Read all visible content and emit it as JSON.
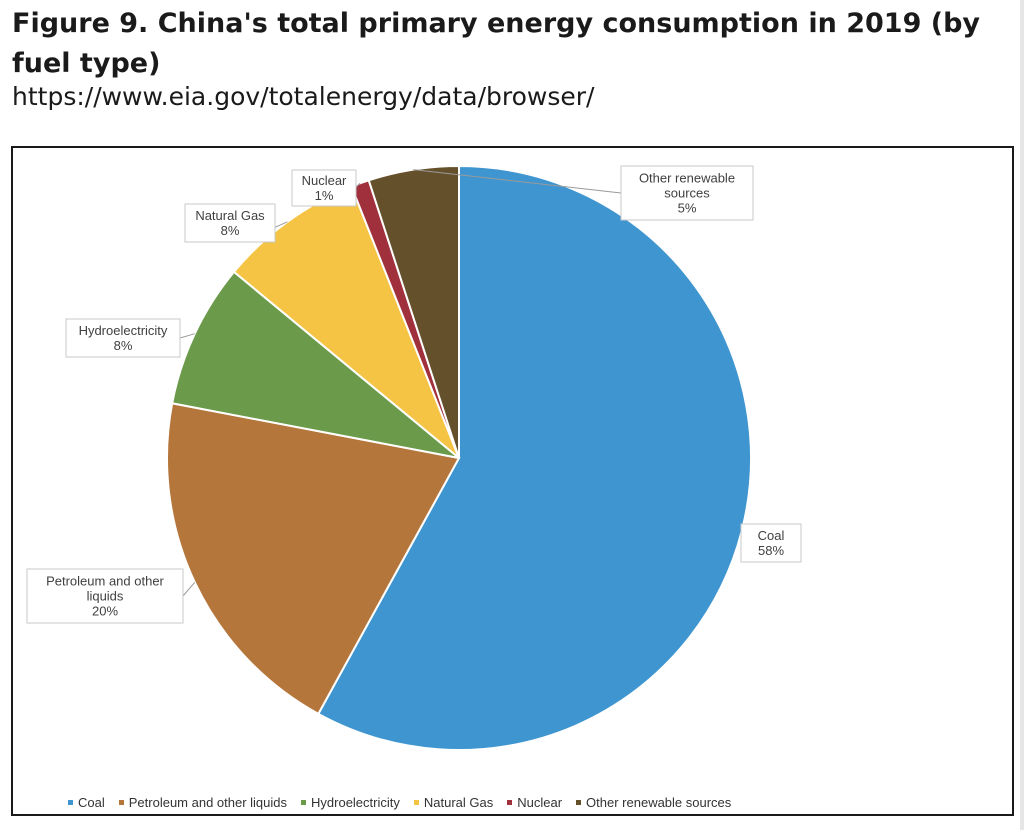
{
  "figure": {
    "title": "Figure 9. China's total primary energy consumption in 2019 (by fuel type)",
    "url": "https://www.eia.gov/totalenergy/data/browser/"
  },
  "chart_data": {
    "type": "pie",
    "title": "",
    "unit": "%",
    "start_angle_deg": 0,
    "direction": "clockwise",
    "categories": [
      "Coal",
      "Petroleum and other liquids",
      "Hydroelectricity",
      "Natural Gas",
      "Nuclear",
      "Other renewable sources"
    ],
    "values": [
      58,
      20,
      8,
      8,
      1,
      5
    ],
    "colors": [
      "#3f95cf",
      "#b5763b",
      "#6a9a4a",
      "#f5c445",
      "#a0303c",
      "#64502a"
    ],
    "labels": [
      {
        "lines": [
          "Coal",
          "58%"
        ]
      },
      {
        "lines": [
          "Petroleum and other",
          "liquids",
          "20%"
        ]
      },
      {
        "lines": [
          "Hydroelectricity",
          "8%"
        ]
      },
      {
        "lines": [
          "Natural Gas",
          "8%"
        ]
      },
      {
        "lines": [
          "Nuclear",
          "1%"
        ]
      },
      {
        "lines": [
          "Other renewable",
          "sources",
          "5%"
        ]
      }
    ],
    "legend": {
      "position": "bottom",
      "items": [
        "Coal",
        "Petroleum and other liquids",
        "Hydroelectricity",
        "Natural Gas",
        "Nuclear",
        "Other renewable sources"
      ]
    }
  }
}
